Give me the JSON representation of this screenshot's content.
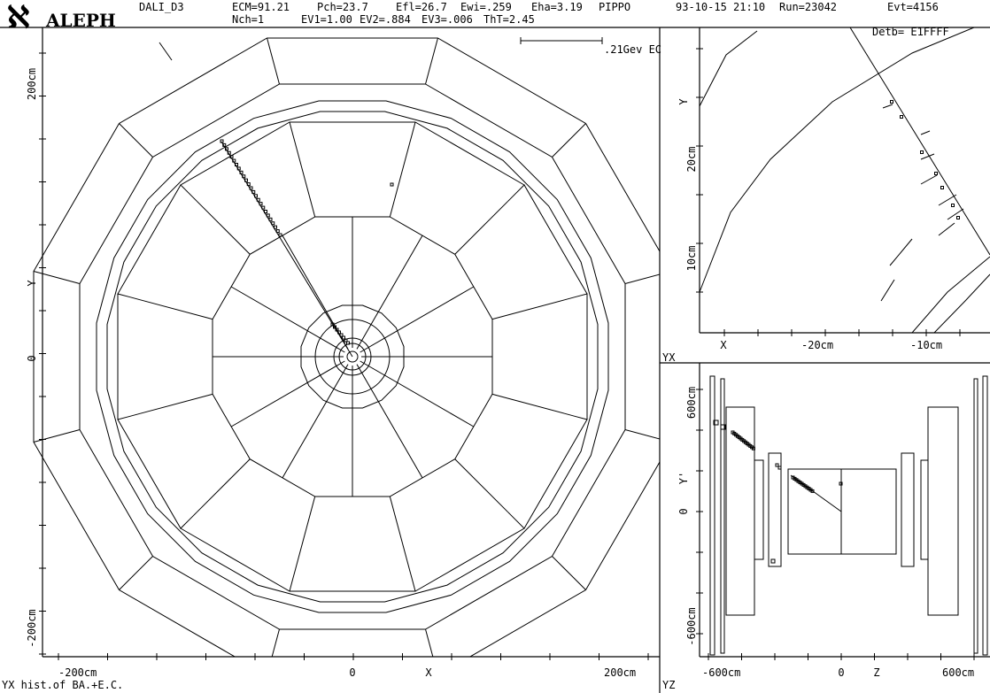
{
  "header": {
    "logo": "ALEPH",
    "program": "DALI_D3",
    "line1": [
      "ECM=91.21",
      "Pch=23.7",
      "Efl=26.7",
      "Ewi=.259",
      "Eha=3.19",
      "PIPPO",
      "93-10-15 21:10",
      "Run=23042",
      "Evt=4156"
    ],
    "line2": [
      "Nch=1",
      "EV1=1.00",
      "EV2=.884",
      "EV3=.006",
      "ThT=2.45",
      "Detb= E1FFFF"
    ]
  },
  "main_view": {
    "scale_label": ".21Gev EC",
    "y_labels": [
      "200cm",
      "Y",
      "0",
      "-200cm"
    ],
    "x_labels": [
      "-200cm",
      "0",
      "X",
      "200cm"
    ],
    "footer": "YX hist.of BA.+E.C."
  },
  "zoom_view": {
    "y_labels": [
      "Y",
      "20cm",
      "10cm"
    ],
    "x_labels": [
      "X",
      "-20cm",
      "-10cm"
    ],
    "footer": "YX"
  },
  "side_view": {
    "y_labels": [
      "600cm",
      "Y'",
      "0",
      "-600cm"
    ],
    "x_labels": [
      "-600cm",
      "0",
      "Z",
      "600cm"
    ],
    "footer": "YZ"
  }
}
